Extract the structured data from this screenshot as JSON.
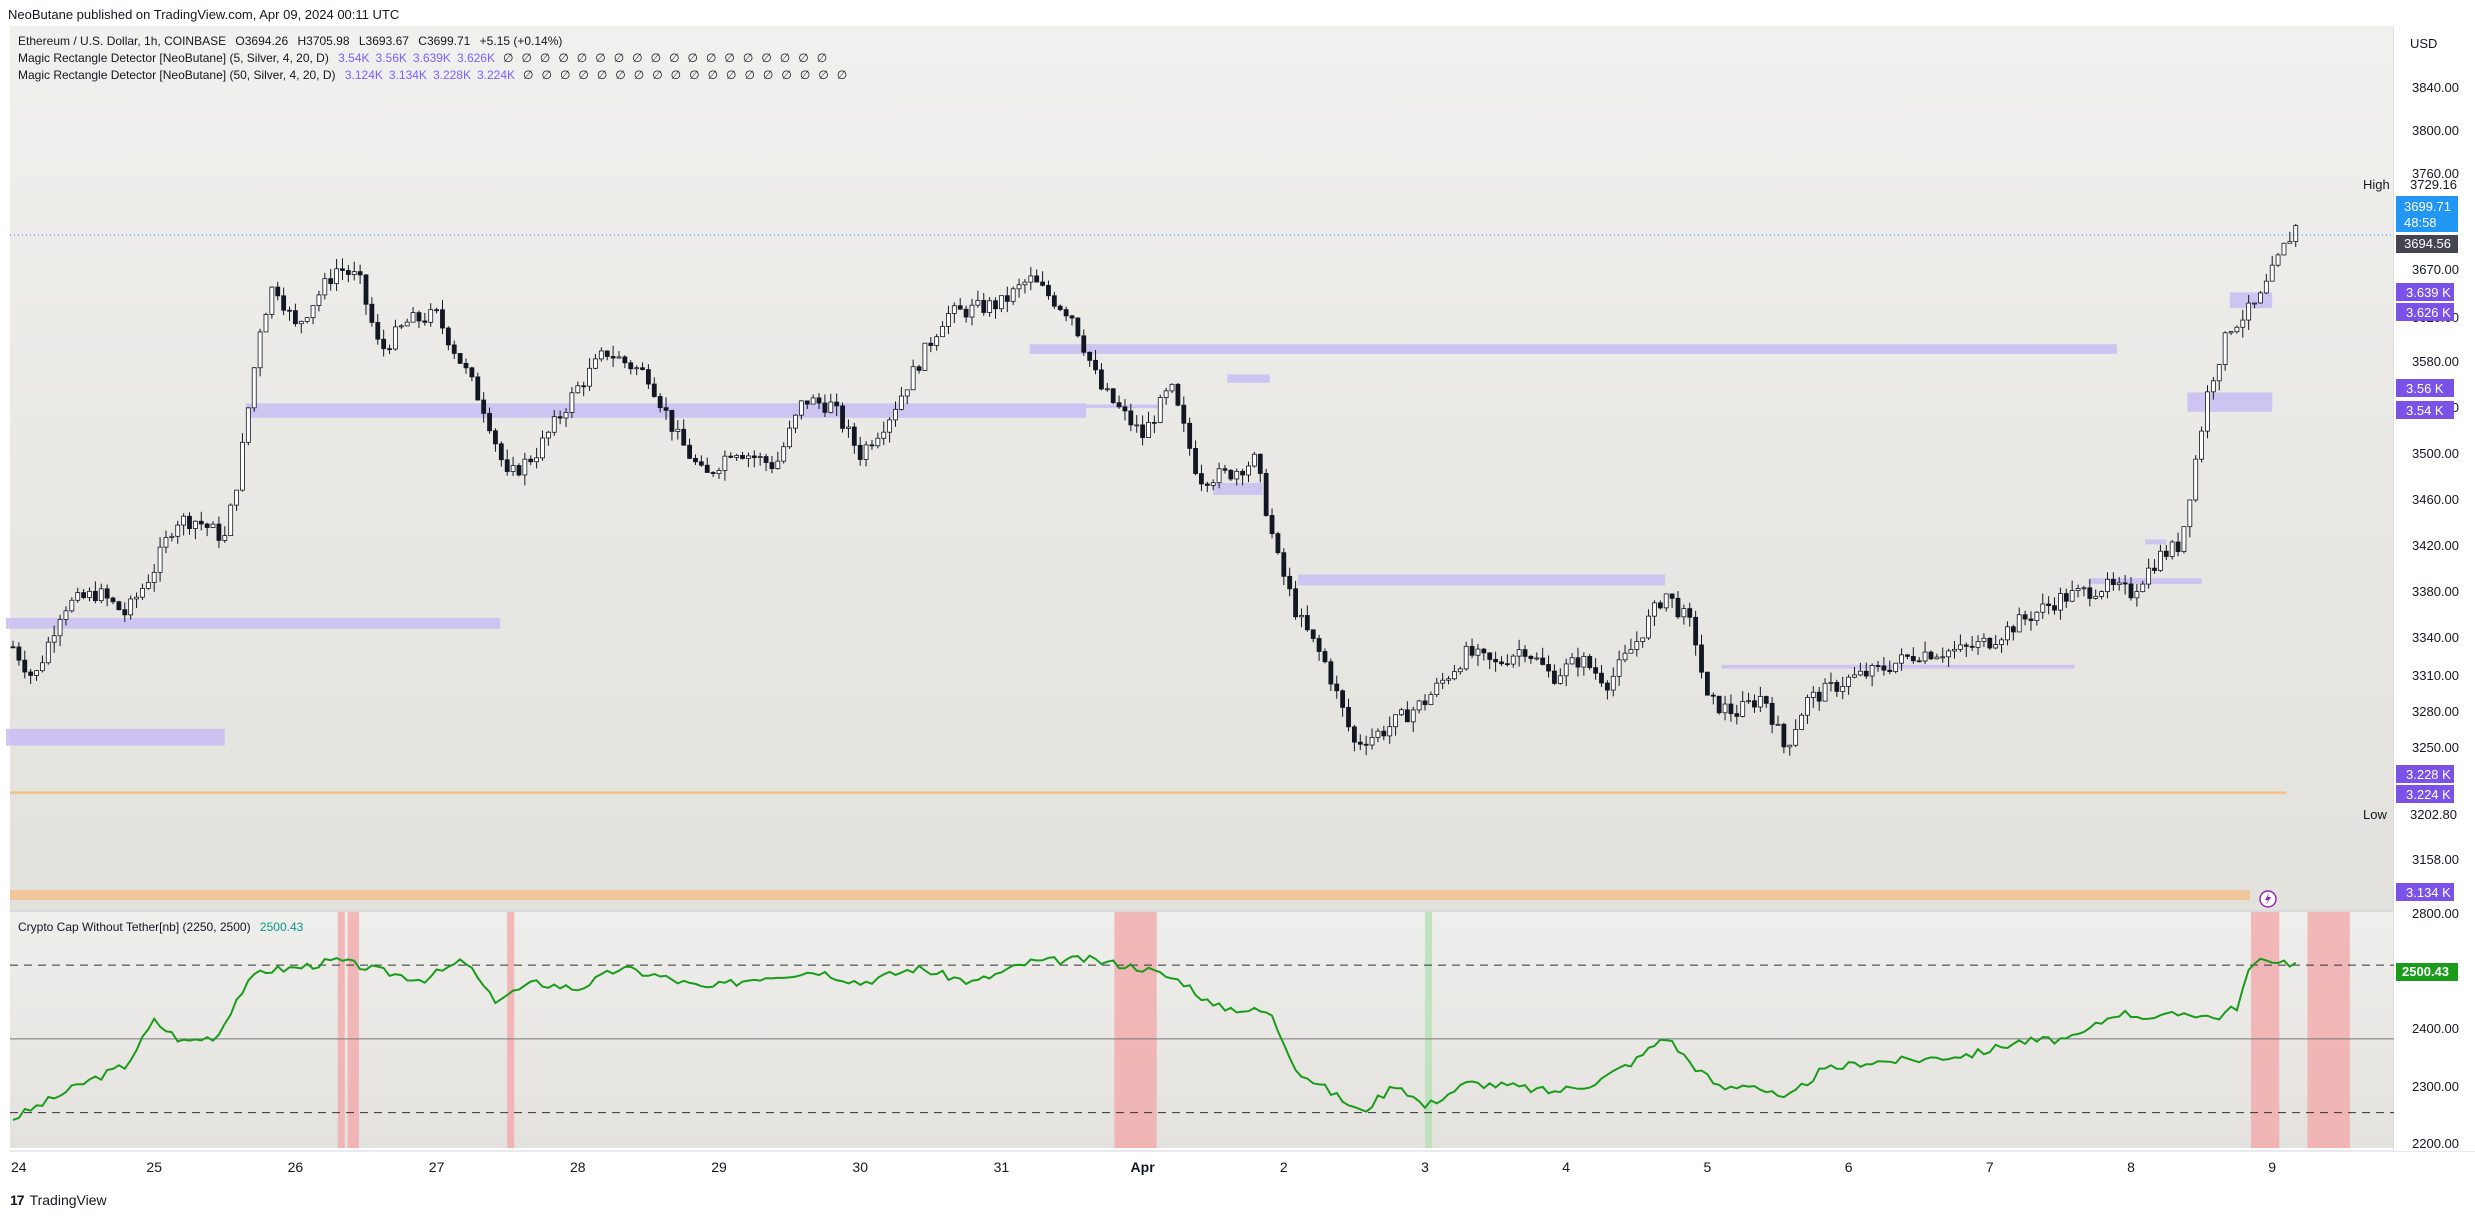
{
  "header": {
    "published_text": "NeoButane published on TradingView.com, Apr 09, 2024 00:11 UTC"
  },
  "legend": {
    "symbol_line": "Ethereum / U.S. Dollar, 1h, COINBASE",
    "ohlc": [
      "O3694.26",
      "H3705.98",
      "L3693.67",
      "C3699.71",
      "+5.15 (+0.14%)"
    ],
    "indicator1_name": "Magic Rectangle Detector [NeoButane] (5, Silver, 4, 20, D)",
    "indicator1_values": [
      "3.54K",
      "3.56K",
      "3.639K",
      "3.626K"
    ],
    "indicator2_name": "Magic Rectangle Detector [NeoButane] (50, Silver, 4, 20, D)",
    "indicator2_values": [
      "3.124K",
      "3.134K",
      "3.228K",
      "3.224K"
    ],
    "null_glyph": "∅",
    "indicator_value_color": "#7b61ff",
    "osc_name": "Crypto Cap Without Tether[nb] (2250, 2500)",
    "osc_value": "2500.43",
    "osc_value_color": "#089981"
  },
  "price_axis": {
    "currency": "USD",
    "ticks": [
      "3840.00",
      "3800.00",
      "3760.00",
      "3670.00",
      "3620.00",
      "3580.00",
      "3540.00",
      "3500.00",
      "3460.00",
      "3420.00",
      "3380.00",
      "3340.00",
      "3310.00",
      "3280.00",
      "3250.00",
      "3158.00"
    ],
    "high_label": "High",
    "high_value": "3729.16",
    "low_label": "Low",
    "low_value": "3202.80",
    "last_price": "3699.71",
    "countdown": "48:58",
    "prev_close": "3694.56",
    "rect_labels": [
      "3.639 K",
      "3.626 K",
      "3.56 K",
      "3.54 K",
      "3.228 K",
      "3.224 K",
      "3.134 K"
    ]
  },
  "osc_axis": {
    "ticks": [
      "2800.00",
      "2400.00",
      "2300.00",
      "2200.00"
    ],
    "value_label": "2500.43"
  },
  "time_axis": {
    "labels": [
      "24",
      "25",
      "26",
      "27",
      "28",
      "29",
      "30",
      "31",
      "Apr",
      "2",
      "3",
      "4",
      "5",
      "6",
      "7",
      "8",
      "9"
    ]
  },
  "footer": {
    "brand": "TradingView",
    "logo_glyph": "17"
  },
  "colors": {
    "rect_fill": "#c9bdf2",
    "rect_label_bg": "#7b52e8",
    "last_price_bg": "#2196f3",
    "prev_close_bg": "#434651",
    "osc_line": "#1a9c1a",
    "osc_band_red": "#f2a9aa",
    "osc_band_green": "#b7e0b5",
    "orange_line": "#f3c089"
  },
  "chart_data": {
    "type": "candlestick",
    "symbol": "Ethereum / U.S. Dollar",
    "interval": "1h",
    "price_range": [
      3130,
      3860
    ],
    "osc_range": [
      2190,
      2590
    ],
    "days": [
      "24",
      "25",
      "26",
      "27",
      "28",
      "29",
      "30",
      "31",
      "Apr",
      "2",
      "3",
      "4",
      "5",
      "6",
      "7",
      "8",
      "9"
    ],
    "close_path": [
      [
        0,
        3345
      ],
      [
        0.15,
        3318
      ],
      [
        0.35,
        3378
      ],
      [
        0.6,
        3390
      ],
      [
        0.8,
        3372
      ],
      [
        1.0,
        3410
      ],
      [
        1.15,
        3450
      ],
      [
        1.3,
        3450
      ],
      [
        1.5,
        3435
      ],
      [
        1.6,
        3490
      ],
      [
        1.75,
        3610
      ],
      [
        1.85,
        3648
      ],
      [
        2.0,
        3610
      ],
      [
        2.3,
        3660
      ],
      [
        2.45,
        3650
      ],
      [
        2.6,
        3590
      ],
      [
        2.8,
        3615
      ],
      [
        3.0,
        3620
      ],
      [
        3.2,
        3575
      ],
      [
        3.35,
        3540
      ],
      [
        3.5,
        3485
      ],
      [
        3.7,
        3505
      ],
      [
        4.0,
        3560
      ],
      [
        4.2,
        3590
      ],
      [
        4.5,
        3570
      ],
      [
        4.7,
        3520
      ],
      [
        4.9,
        3485
      ],
      [
        5.1,
        3510
      ],
      [
        5.4,
        3495
      ],
      [
        5.6,
        3550
      ],
      [
        5.8,
        3545
      ],
      [
        6.0,
        3505
      ],
      [
        6.2,
        3535
      ],
      [
        6.6,
        3620
      ],
      [
        7.0,
        3630
      ],
      [
        7.2,
        3650
      ],
      [
        7.5,
        3620
      ],
      [
        7.7,
        3560
      ],
      [
        8.0,
        3520
      ],
      [
        8.2,
        3560
      ],
      [
        8.4,
        3485
      ],
      [
        8.6,
        3488
      ],
      [
        8.8,
        3500
      ],
      [
        8.95,
        3420
      ],
      [
        9.1,
        3370
      ],
      [
        9.3,
        3330
      ],
      [
        9.5,
        3265
      ],
      [
        9.7,
        3275
      ],
      [
        10.0,
        3300
      ],
      [
        10.3,
        3340
      ],
      [
        10.5,
        3330
      ],
      [
        10.7,
        3345
      ],
      [
        10.9,
        3320
      ],
      [
        11.1,
        3335
      ],
      [
        11.3,
        3315
      ],
      [
        11.5,
        3350
      ],
      [
        11.7,
        3390
      ],
      [
        11.9,
        3360
      ],
      [
        12.0,
        3300
      ],
      [
        12.2,
        3290
      ],
      [
        12.4,
        3305
      ],
      [
        12.55,
        3260
      ],
      [
        12.7,
        3300
      ],
      [
        13.0,
        3318
      ],
      [
        13.2,
        3325
      ],
      [
        13.5,
        3340
      ],
      [
        13.8,
        3342
      ],
      [
        14.0,
        3350
      ],
      [
        14.2,
        3365
      ],
      [
        14.5,
        3385
      ],
      [
        14.8,
        3395
      ],
      [
        15.0,
        3390
      ],
      [
        15.2,
        3420
      ],
      [
        15.35,
        3430
      ],
      [
        15.55,
        3560
      ],
      [
        15.7,
        3610
      ],
      [
        15.9,
        3630
      ],
      [
        16.1,
        3680
      ],
      [
        16.2,
        3700
      ]
    ],
    "osc_path": [
      [
        0,
        2240
      ],
      [
        0.5,
        2300
      ],
      [
        0.8,
        2330
      ],
      [
        1.0,
        2405
      ],
      [
        1.2,
        2370
      ],
      [
        1.45,
        2380
      ],
      [
        1.6,
        2450
      ],
      [
        1.75,
        2490
      ],
      [
        2.0,
        2495
      ],
      [
        2.3,
        2508
      ],
      [
        2.6,
        2490
      ],
      [
        2.9,
        2475
      ],
      [
        3.2,
        2508
      ],
      [
        3.4,
        2440
      ],
      [
        3.7,
        2470
      ],
      [
        4.0,
        2460
      ],
      [
        4.3,
        2495
      ],
      [
        4.6,
        2480
      ],
      [
        4.9,
        2460
      ],
      [
        5.3,
        2480
      ],
      [
        5.7,
        2490
      ],
      [
        6.0,
        2470
      ],
      [
        6.4,
        2495
      ],
      [
        6.8,
        2470
      ],
      [
        7.2,
        2505
      ],
      [
        7.6,
        2510
      ],
      [
        8.0,
        2495
      ],
      [
        8.3,
        2470
      ],
      [
        8.5,
        2430
      ],
      [
        8.9,
        2420
      ],
      [
        9.1,
        2320
      ],
      [
        9.3,
        2290
      ],
      [
        9.55,
        2250
      ],
      [
        9.8,
        2300
      ],
      [
        10.0,
        2260
      ],
      [
        10.3,
        2300
      ],
      [
        10.6,
        2295
      ],
      [
        10.9,
        2285
      ],
      [
        11.2,
        2300
      ],
      [
        11.5,
        2340
      ],
      [
        11.7,
        2380
      ],
      [
        11.9,
        2330
      ],
      [
        12.1,
        2290
      ],
      [
        12.3,
        2300
      ],
      [
        12.55,
        2270
      ],
      [
        12.8,
        2320
      ],
      [
        13.1,
        2335
      ],
      [
        13.5,
        2340
      ],
      [
        13.9,
        2350
      ],
      [
        14.2,
        2370
      ],
      [
        14.6,
        2375
      ],
      [
        14.9,
        2420
      ],
      [
        15.2,
        2410
      ],
      [
        15.4,
        2420
      ],
      [
        15.6,
        2410
      ],
      [
        15.75,
        2430
      ],
      [
        15.85,
        2500
      ],
      [
        16.0,
        2510
      ],
      [
        16.2,
        2500
      ]
    ],
    "rectangles": [
      {
        "x0": -0.05,
        "x1": 1.5,
        "y0": 3263,
        "y1": 3277
      },
      {
        "x0": -0.05,
        "x1": 3.45,
        "y0": 3360,
        "y1": 3369
      },
      {
        "x0": 1.65,
        "x1": 7.6,
        "y0": 3535,
        "y1": 3547
      },
      {
        "x0": 7.6,
        "x1": 8.15,
        "y0": 3543,
        "y1": 3546
      },
      {
        "x0": 7.2,
        "x1": 14.9,
        "y0": 3588,
        "y1": 3596
      },
      {
        "x0": 8.6,
        "x1": 8.9,
        "y0": 3564,
        "y1": 3571
      },
      {
        "x0": 8.5,
        "x1": 8.85,
        "y0": 3471,
        "y1": 3481
      },
      {
        "x0": 9.1,
        "x1": 11.7,
        "y0": 3396,
        "y1": 3405
      },
      {
        "x0": 12.1,
        "x1": 14.6,
        "y0": 3327,
        "y1": 3330
      },
      {
        "x0": 14.7,
        "x1": 15.5,
        "y0": 3397,
        "y1": 3402
      },
      {
        "x0": 15.1,
        "x1": 15.25,
        "y0": 3430,
        "y1": 3434
      },
      {
        "x0": 15.4,
        "x1": 16.0,
        "y0": 3540,
        "y1": 3556
      },
      {
        "x0": 15.7,
        "x1": 16.0,
        "y0": 3626,
        "y1": 3639
      }
    ],
    "orange_level": 3224,
    "red_bands": [
      [
        2.3,
        2.35
      ],
      [
        2.37,
        2.45
      ],
      [
        3.5,
        3.55
      ],
      [
        7.8,
        8.1
      ],
      [
        15.85,
        16.05
      ],
      [
        16.25,
        16.55
      ]
    ],
    "green_bands": [
      [
        10.0,
        10.05
      ]
    ],
    "osc_levels": {
      "upper": 2500,
      "middle": 2375,
      "lower": 2250
    }
  }
}
